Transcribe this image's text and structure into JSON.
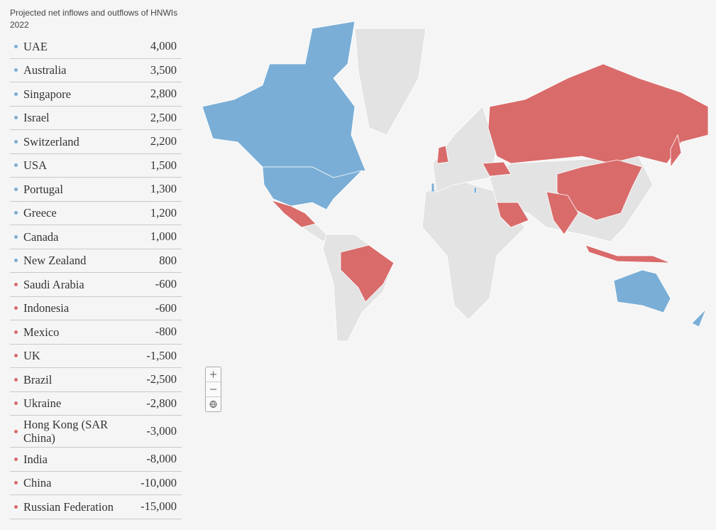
{
  "title": "Projected net inflows and outflows of HNWIs",
  "subtitle": "2022",
  "table": {
    "rows": [
      {
        "name": "UAE",
        "value": "4,000",
        "color": "#7aaed6"
      },
      {
        "name": "Australia",
        "value": "3,500",
        "color": "#7aaed6"
      },
      {
        "name": "Singapore",
        "value": "2,800",
        "color": "#7aaed6"
      },
      {
        "name": "Israel",
        "value": "2,500",
        "color": "#7aaed6"
      },
      {
        "name": "Switzerland",
        "value": "2,200",
        "color": "#7aaed6"
      },
      {
        "name": "USA",
        "value": "1,500",
        "color": "#7aaed6"
      },
      {
        "name": "Portugal",
        "value": "1,300",
        "color": "#7aaed6"
      },
      {
        "name": "Greece",
        "value": "1,200",
        "color": "#7aaed6"
      },
      {
        "name": "Canada",
        "value": "1,000",
        "color": "#7aaed6"
      },
      {
        "name": "New Zealand",
        "value": "800",
        "color": "#7aaed6"
      },
      {
        "name": "Saudi Arabia",
        "value": "-600",
        "color": "#d96b6b"
      },
      {
        "name": "Indonesia",
        "value": "-600",
        "color": "#d96b6b"
      },
      {
        "name": "Mexico",
        "value": "-800",
        "color": "#d96b6b"
      },
      {
        "name": "UK",
        "value": "-1,500",
        "color": "#d96b6b"
      },
      {
        "name": "Brazil",
        "value": "-2,500",
        "color": "#d96b6b"
      },
      {
        "name": "Ukraine",
        "value": "-2,800",
        "color": "#d96b6b"
      },
      {
        "name": "Hong Kong (SAR China)",
        "value": "-3,000",
        "color": "#d96b6b"
      },
      {
        "name": "India",
        "value": "-8,000",
        "color": "#d96b6b"
      },
      {
        "name": "China",
        "value": "-10,000",
        "color": "#d96b6b"
      },
      {
        "name": "Russian Federation",
        "value": "-15,000",
        "color": "#d96b6b"
      }
    ]
  }
}
